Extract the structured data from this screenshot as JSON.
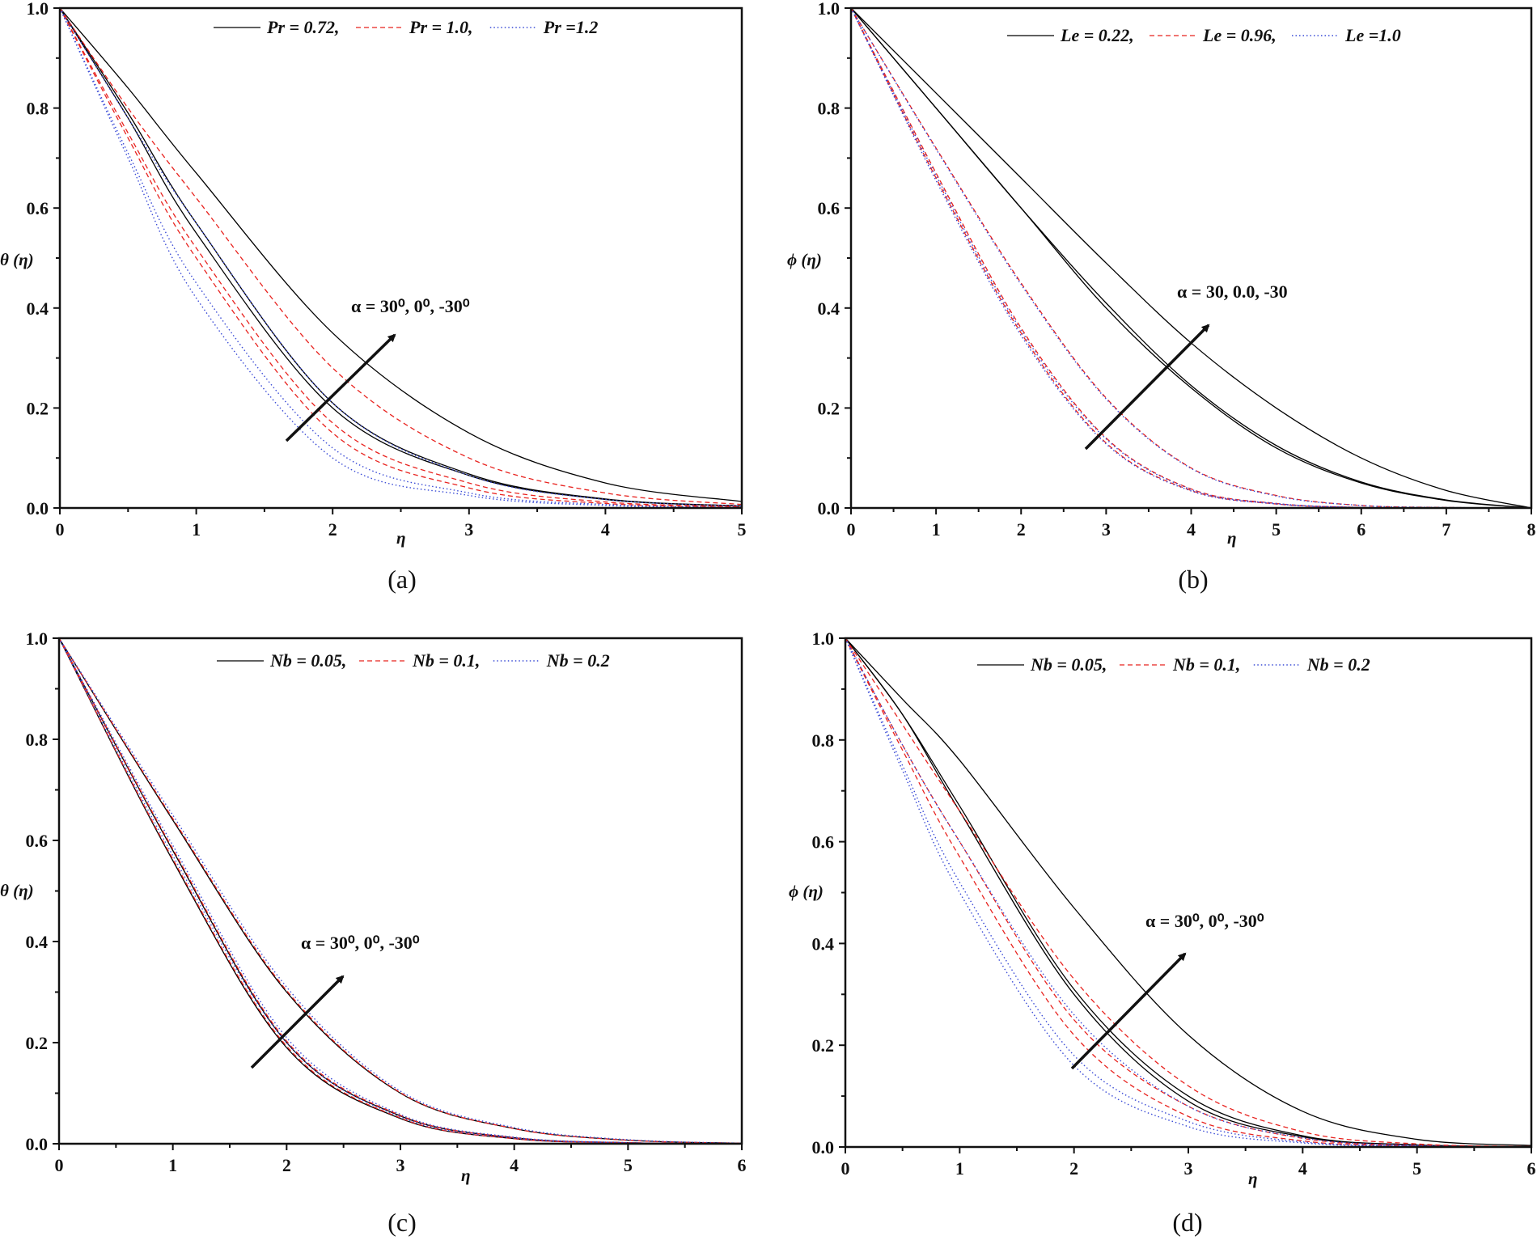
{
  "colors": {
    "solid": "#000000",
    "dashed": "#e8231f",
    "dotted": "#3a4bd6",
    "frame": "#111111"
  },
  "chart_data": [
    {
      "type": "line",
      "caption": "(a)",
      "xlabel": "η",
      "ylabel": "θ (η)",
      "xlim": [
        0,
        5
      ],
      "ylim": [
        0,
        1
      ],
      "xticks": [
        "0",
        "1",
        "2",
        "3",
        "4",
        "5"
      ],
      "yticks": [
        "0.0",
        "0.2",
        "0.4",
        "0.6",
        "0.8",
        "1.0"
      ],
      "annotation": "α = 30⁰, 0⁰, -30⁰",
      "legend": [
        {
          "label": "Pr = 0.72,",
          "style": "solid"
        },
        {
          "label": "Pr = 1.0,",
          "style": "dashed"
        },
        {
          "label": "Pr =1.2",
          "style": "dotted"
        }
      ],
      "x": [
        0,
        0.5,
        1,
        2,
        3,
        4,
        5
      ],
      "series": [
        {
          "name": "Pr=0.72, α=30",
          "style": "solid",
          "y": [
            1,
            0.78,
            0.55,
            0.2,
            0.065,
            0.017,
            0.004
          ]
        },
        {
          "name": "Pr=0.72, α=0",
          "style": "solid",
          "y": [
            1,
            0.79,
            0.57,
            0.21,
            0.068,
            0.018,
            0.004
          ]
        },
        {
          "name": "Pr=0.72, α=-30",
          "style": "solid",
          "y": [
            1,
            0.84,
            0.67,
            0.35,
            0.15,
            0.05,
            0.013
          ]
        },
        {
          "name": "Pr=1.0, α=30",
          "style": "dashed",
          "y": [
            1,
            0.74,
            0.5,
            0.15,
            0.04,
            0.009,
            0.002
          ]
        },
        {
          "name": "Pr=1.0, α=0",
          "style": "dashed",
          "y": [
            1,
            0.75,
            0.52,
            0.17,
            0.05,
            0.012,
            0.003
          ]
        },
        {
          "name": "Pr=1.0, α=-30",
          "style": "dashed",
          "y": [
            1,
            0.8,
            0.62,
            0.28,
            0.1,
            0.03,
            0.007
          ]
        },
        {
          "name": "Pr=1.2, α=30",
          "style": "dotted",
          "y": [
            1,
            0.7,
            0.42,
            0.1,
            0.025,
            0.005,
            0.001
          ]
        },
        {
          "name": "Pr=1.2, α=0",
          "style": "dotted",
          "y": [
            1,
            0.71,
            0.45,
            0.12,
            0.03,
            0.007,
            0.001
          ]
        },
        {
          "name": "Pr=1.2, α=-30",
          "style": "dotted",
          "y": [
            1,
            0.78,
            0.57,
            0.21,
            0.065,
            0.017,
            0.004
          ]
        }
      ]
    },
    {
      "type": "line",
      "caption": "(b)",
      "xlabel": "η",
      "ylabel": "ϕ (η)",
      "xlim": [
        0,
        8
      ],
      "ylim": [
        0,
        1
      ],
      "xticks": [
        "0",
        "1",
        "2",
        "3",
        "4",
        "5",
        "6",
        "7",
        "8"
      ],
      "yticks": [
        "0.0",
        "0.2",
        "0.4",
        "0.6",
        "0.8",
        "1.0"
      ],
      "annotation": "α = 30, 0.0, -30",
      "legend": [
        {
          "label": "Le = 0.22,",
          "style": "solid"
        },
        {
          "label": "Le = 0.96,",
          "style": "dashed"
        },
        {
          "label": "Le =1.0",
          "style": "dotted"
        }
      ],
      "x": [
        0,
        1,
        2,
        3,
        4,
        5,
        6,
        7,
        8
      ],
      "series": [
        {
          "name": "Le=0.22, α=30",
          "style": "solid",
          "y": [
            1,
            0.8,
            0.6,
            0.4,
            0.24,
            0.12,
            0.05,
            0.015,
            0
          ]
        },
        {
          "name": "Le=0.22, α=0",
          "style": "solid",
          "y": [
            1,
            0.8,
            0.6,
            0.41,
            0.245,
            0.125,
            0.052,
            0.016,
            0
          ]
        },
        {
          "name": "Le=0.22, α=-30",
          "style": "solid",
          "y": [
            1,
            0.83,
            0.66,
            0.49,
            0.33,
            0.2,
            0.1,
            0.035,
            0
          ]
        },
        {
          "name": "Le=0.96, α=30",
          "style": "dashed",
          "y": [
            1,
            0.66,
            0.35,
            0.13,
            0.035,
            0.008,
            0.001,
            0,
            0
          ]
        },
        {
          "name": "Le=0.96, α=0",
          "style": "dashed",
          "y": [
            1,
            0.67,
            0.36,
            0.14,
            0.038,
            0.009,
            0.001,
            0,
            0
          ]
        },
        {
          "name": "Le=0.96, α=-30",
          "style": "dashed",
          "y": [
            1,
            0.72,
            0.45,
            0.22,
            0.08,
            0.025,
            0.005,
            0.001,
            0
          ]
        },
        {
          "name": "Le=1.0, α=30",
          "style": "dotted",
          "y": [
            1,
            0.655,
            0.345,
            0.128,
            0.034,
            0.008,
            0.001,
            0,
            0
          ]
        },
        {
          "name": "Le=1.0, α=0",
          "style": "dotted",
          "y": [
            1,
            0.665,
            0.355,
            0.138,
            0.037,
            0.009,
            0.001,
            0,
            0
          ]
        },
        {
          "name": "Le=1.0, α=-30",
          "style": "dotted",
          "y": [
            1,
            0.718,
            0.447,
            0.218,
            0.079,
            0.024,
            0.005,
            0.001,
            0
          ]
        }
      ]
    },
    {
      "type": "line",
      "caption": "(c)",
      "xlabel": "η",
      "ylabel": "θ (η)",
      "xlim": [
        0,
        6
      ],
      "ylim": [
        0,
        1
      ],
      "xticks": [
        "0",
        "1",
        "2",
        "3",
        "4",
        "5",
        "6"
      ],
      "yticks": [
        "0.0",
        "0.2",
        "0.4",
        "0.6",
        "0.8",
        "1.0"
      ],
      "annotation": "α = 30⁰, 0⁰, -30⁰",
      "legend": [
        {
          "label": "Nb = 0.05,",
          "style": "solid"
        },
        {
          "label": "Nb = 0.1,",
          "style": "dashed"
        },
        {
          "label": "Nb = 0.2",
          "style": "dotted"
        }
      ],
      "x": [
        0,
        1,
        2,
        3,
        4,
        5,
        6
      ],
      "series": [
        {
          "name": "Nb=0.05, α=30",
          "style": "solid",
          "y": [
            1,
            0.56,
            0.19,
            0.05,
            0.01,
            0.002,
            0
          ]
        },
        {
          "name": "Nb=0.05, α=0",
          "style": "solid",
          "y": [
            1,
            0.58,
            0.2,
            0.055,
            0.012,
            0.002,
            0
          ]
        },
        {
          "name": "Nb=0.05, α=-30",
          "style": "solid",
          "y": [
            1,
            0.64,
            0.3,
            0.1,
            0.03,
            0.007,
            0.001
          ]
        },
        {
          "name": "Nb=0.1, α=30",
          "style": "dashed",
          "y": [
            1,
            0.563,
            0.193,
            0.051,
            0.01,
            0.002,
            0
          ]
        },
        {
          "name": "Nb=0.1, α=0",
          "style": "dashed",
          "y": [
            1,
            0.583,
            0.203,
            0.056,
            0.012,
            0.002,
            0
          ]
        },
        {
          "name": "Nb=0.1, α=-30",
          "style": "dashed",
          "y": [
            1,
            0.643,
            0.303,
            0.101,
            0.03,
            0.007,
            0.001
          ]
        },
        {
          "name": "Nb=0.2, α=30",
          "style": "dotted",
          "y": [
            1,
            0.57,
            0.2,
            0.053,
            0.011,
            0.002,
            0
          ]
        },
        {
          "name": "Nb=0.2, α=0",
          "style": "dotted",
          "y": [
            1,
            0.59,
            0.21,
            0.058,
            0.013,
            0.002,
            0
          ]
        },
        {
          "name": "Nb=0.2, α=-30",
          "style": "dotted",
          "y": [
            1,
            0.65,
            0.31,
            0.104,
            0.032,
            0.008,
            0.001
          ]
        }
      ]
    },
    {
      "type": "line",
      "caption": "(d)",
      "xlabel": "η",
      "ylabel": "ϕ (η)",
      "xlim": [
        0,
        6
      ],
      "ylim": [
        0,
        1
      ],
      "xticks": [
        "0",
        "1",
        "2",
        "3",
        "4",
        "5",
        "6"
      ],
      "yticks": [
        "0.0",
        "0.2",
        "0.4",
        "0.6",
        "0.8",
        "1.0"
      ],
      "annotation": "α = 30⁰, 0⁰, -30⁰",
      "legend": [
        {
          "label": "Nb = 0.05,",
          "style": "solid"
        },
        {
          "label": "Nb = 0.1,",
          "style": "dashed"
        },
        {
          "label": "Nb = 0.2",
          "style": "dotted"
        }
      ],
      "x": [
        0,
        0.5,
        1,
        2,
        3,
        4,
        5,
        6
      ],
      "series": [
        {
          "name": "Nb=0.05, α=30",
          "style": "solid",
          "y": [
            1,
            0.85,
            0.66,
            0.3,
            0.09,
            0.02,
            0.004,
            0.001
          ]
        },
        {
          "name": "Nb=0.05, α=0",
          "style": "solid",
          "y": [
            1,
            0.85,
            0.67,
            0.31,
            0.1,
            0.022,
            0.004,
            0.001
          ]
        },
        {
          "name": "Nb=0.05, α=-30",
          "style": "solid",
          "y": [
            1,
            0.88,
            0.76,
            0.47,
            0.22,
            0.07,
            0.015,
            0.003
          ]
        },
        {
          "name": "Nb=0.1, α=30",
          "style": "dashed",
          "y": [
            1,
            0.78,
            0.57,
            0.22,
            0.06,
            0.012,
            0.002,
            0
          ]
        },
        {
          "name": "Nb=0.1, α=0",
          "style": "dashed",
          "y": [
            1,
            0.79,
            0.6,
            0.25,
            0.08,
            0.017,
            0.003,
            0
          ]
        },
        {
          "name": "Nb=0.1, α=-30",
          "style": "dashed",
          "y": [
            1,
            0.83,
            0.66,
            0.33,
            0.12,
            0.03,
            0.006,
            0.001
          ]
        },
        {
          "name": "Nb=0.2, α=30",
          "style": "dotted",
          "y": [
            1,
            0.74,
            0.5,
            0.16,
            0.04,
            0.008,
            0.001,
            0
          ]
        },
        {
          "name": "Nb=0.2, α=0",
          "style": "dotted",
          "y": [
            1,
            0.75,
            0.52,
            0.18,
            0.05,
            0.01,
            0.002,
            0
          ]
        },
        {
          "name": "Nb=0.2, α=-30",
          "style": "dotted",
          "y": [
            1,
            0.79,
            0.6,
            0.26,
            0.08,
            0.018,
            0.003,
            0
          ]
        }
      ]
    }
  ]
}
